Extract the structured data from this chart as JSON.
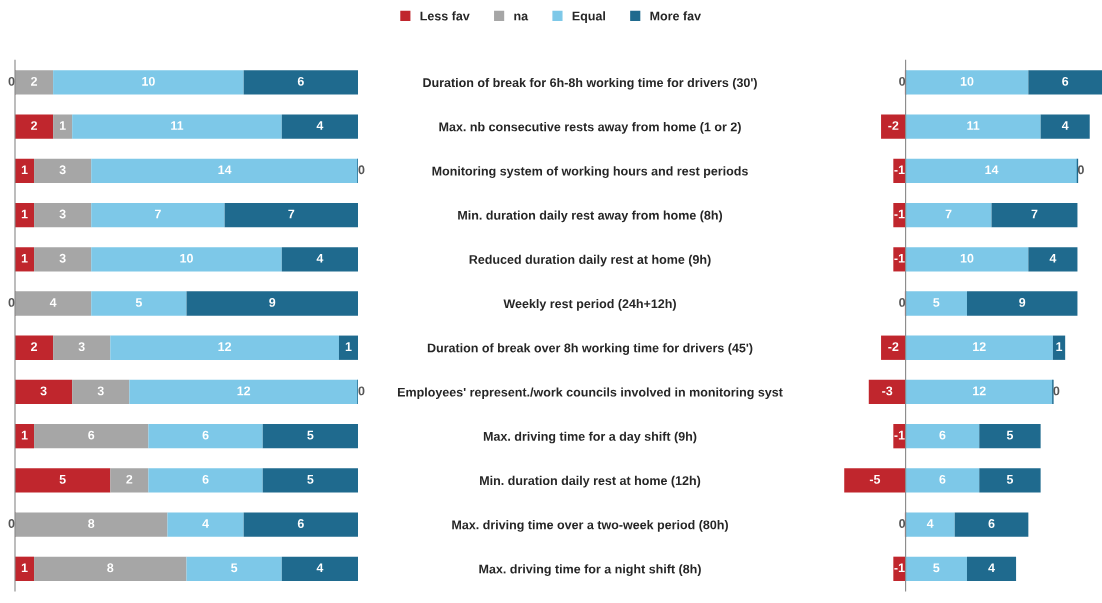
{
  "chart_data": [
    {
      "type": "bar",
      "orientation": "horizontal",
      "stacked": true,
      "data_labels": true,
      "legend": "top",
      "tick_labels": "y",
      "grid": false,
      "xlim": [
        0,
        18
      ],
      "categories": [
        "Duration of break for 6h-8h working time for drivers (30')",
        "Max. nb consecutive rests away from home (1 or 2)",
        "Monitoring system of working hours and rest periods",
        "Min. duration daily rest away from home (8h)",
        "Reduced duration daily rest at home (9h)",
        "Weekly rest period (24h+12h)",
        "Duration of break over 8h working time for drivers (45')",
        "Employees' represent./work councils involved in monitoring syst",
        "Max. driving time for a day shift (9h)",
        "Min. duration daily rest at home (12h)",
        "Max. driving time over a two-week period (80h)",
        "Max. driving time for a night shift (8h)"
      ],
      "series": [
        {
          "name": "Less fav",
          "color": "#c0262d",
          "values": [
            0,
            2,
            1,
            1,
            1,
            0,
            2,
            3,
            1,
            5,
            0,
            1
          ]
        },
        {
          "name": "na",
          "color": "#a6a6a6",
          "values": [
            2,
            1,
            3,
            3,
            3,
            4,
            3,
            3,
            6,
            2,
            8,
            8
          ]
        },
        {
          "name": "Equal",
          "color": "#7dc8e8",
          "values": [
            10,
            11,
            14,
            7,
            10,
            5,
            12,
            12,
            6,
            6,
            4,
            5
          ]
        },
        {
          "name": "More fav",
          "color": "#1f6a8e",
          "values": [
            6,
            4,
            0,
            7,
            4,
            9,
            1,
            0,
            5,
            5,
            6,
            4
          ]
        }
      ]
    },
    {
      "type": "bar",
      "orientation": "horizontal",
      "stacked": true,
      "data_labels": true,
      "tick_labels": false,
      "grid": false,
      "xlim": [
        -5.1,
        16
      ],
      "series": [
        {
          "color": "#c0262d",
          "values": [
            0,
            -2,
            -1,
            -1,
            -1,
            0,
            -2,
            -3,
            -1,
            -5,
            0,
            -1
          ]
        },
        {
          "color": "#7dc8e8",
          "values": [
            10,
            11,
            14,
            7,
            10,
            5,
            12,
            12,
            6,
            6,
            4,
            5
          ]
        },
        {
          "color": "#1f6a8e",
          "values": [
            6,
            4,
            0,
            7,
            4,
            9,
            1,
            0,
            5,
            5,
            6,
            4
          ]
        }
      ]
    }
  ]
}
